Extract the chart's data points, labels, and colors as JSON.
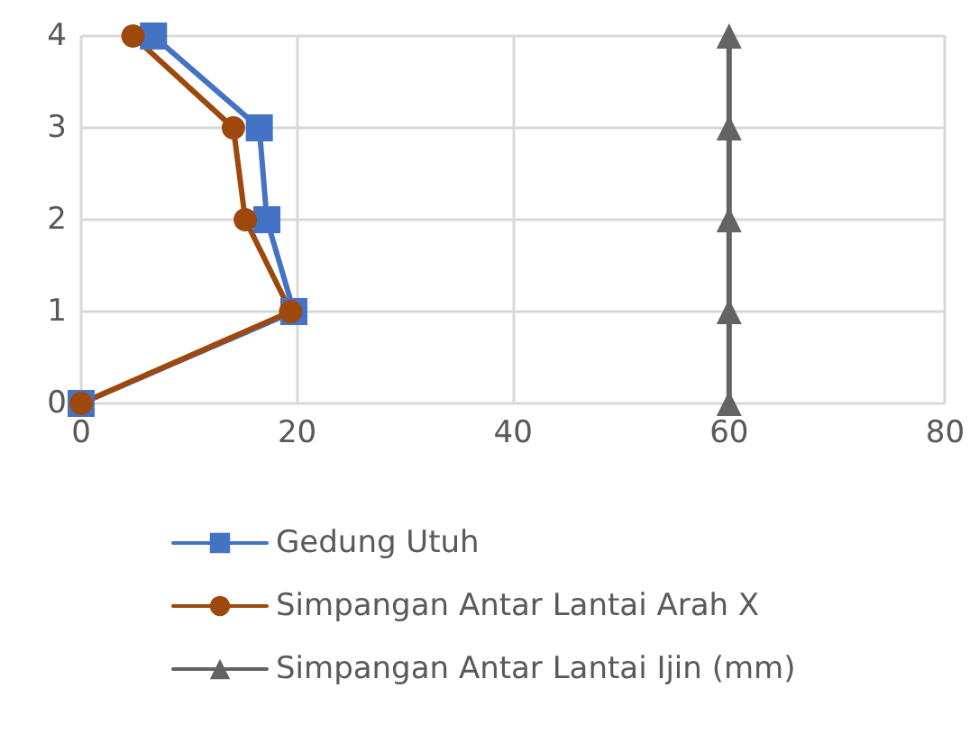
{
  "chart_data": {
    "type": "line",
    "series": [
      {
        "name": "Gedung Utuh",
        "color": "#4472c4",
        "marker": "square",
        "x": [
          0,
          19.7,
          17.2,
          16.5,
          6.7
        ],
        "values": [
          0,
          1,
          2,
          3,
          4
        ]
      },
      {
        "name": "Simpangan Antar Lantai Arah X",
        "color": "#9e480e",
        "marker": "circle",
        "x": [
          0,
          19.4,
          15.2,
          14.1,
          4.8
        ],
        "values": [
          0,
          1,
          2,
          3,
          4
        ]
      },
      {
        "name": "Simpangan Antar Lantai Ijin (mm)",
        "color": "#636363",
        "marker": "triangle",
        "x": [
          60,
          60,
          60,
          60,
          60
        ],
        "values": [
          0,
          1,
          2,
          3,
          4
        ]
      }
    ],
    "xlim": [
      0,
      80
    ],
    "xticks": [
      0,
      20,
      40,
      60,
      80
    ],
    "ylim": [
      0,
      4
    ],
    "yticks": [
      0,
      1,
      2,
      3,
      4
    ],
    "grid": true,
    "legend": "bottom"
  }
}
